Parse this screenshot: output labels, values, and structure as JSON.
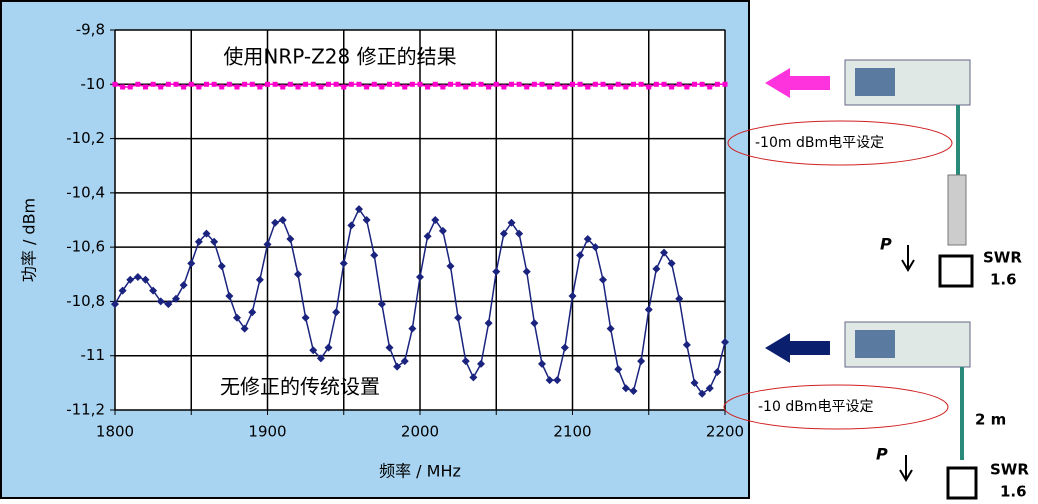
{
  "chart_data": {
    "type": "line",
    "annotations": [
      "使用NRP-Z28 修正的结果",
      "无修正的传统设置"
    ],
    "xlabel": "频率 / MHz",
    "ylabel": "功率 / dBm",
    "x": [
      1800,
      1805,
      1810,
      1815,
      1820,
      1825,
      1830,
      1835,
      1840,
      1845,
      1850,
      1855,
      1860,
      1865,
      1870,
      1875,
      1880,
      1885,
      1890,
      1895,
      1900,
      1905,
      1910,
      1915,
      1920,
      1925,
      1930,
      1935,
      1940,
      1945,
      1950,
      1955,
      1960,
      1965,
      1970,
      1975,
      1980,
      1985,
      1990,
      1995,
      2000,
      2005,
      2010,
      2015,
      2020,
      2025,
      2030,
      2035,
      2040,
      2045,
      2050,
      2055,
      2060,
      2065,
      2070,
      2075,
      2080,
      2085,
      2090,
      2095,
      2100,
      2105,
      2110,
      2115,
      2120,
      2125,
      2130,
      2135,
      2140,
      2145,
      2150,
      2155,
      2160,
      2165,
      2170,
      2175,
      2180,
      2185,
      2190,
      2195,
      2200
    ],
    "series": [
      {
        "color": "#ff00cc",
        "marker": "square",
        "values": [
          -10.0,
          -10.01,
          -10.01,
          -10.0,
          -10.01,
          -10.0,
          -10.01,
          -10.0,
          -10.0,
          -10.01,
          -10.0,
          -10.01,
          -10.0,
          -10.0,
          -10.01,
          -10.0,
          -10.01,
          -10.0,
          -10.0,
          -10.01,
          -10.0,
          -10.0,
          -10.01,
          -10.0,
          -10.01,
          -10.0,
          -10.0,
          -10.01,
          -10.0,
          -10.0,
          -10.01,
          -10.0,
          -10.0,
          -10.01,
          -10.0,
          -10.01,
          -10.0,
          -10.0,
          -10.01,
          -10.0,
          -10.0,
          -10.01,
          -10.0,
          -10.01,
          -10.0,
          -10.0,
          -10.01,
          -10.0,
          -10.0,
          -10.01,
          -10.0,
          -10.01,
          -10.0,
          -10.0,
          -10.01,
          -10.0,
          -10.0,
          -10.01,
          -10.0,
          -10.01,
          -10.0,
          -10.0,
          -10.01,
          -10.0,
          -10.0,
          -10.01,
          -10.0,
          -10.01,
          -10.0,
          -10.0,
          -10.01,
          -10.0,
          -10.0,
          -10.01,
          -10.0,
          -10.01,
          -10.0,
          -10.0,
          -10.01,
          -10.0,
          -10.0
        ]
      },
      {
        "color": "#1a237e",
        "marker": "diamond",
        "values": [
          -10.81,
          -10.76,
          -10.72,
          -10.71,
          -10.72,
          -10.76,
          -10.8,
          -10.81,
          -10.79,
          -10.74,
          -10.66,
          -10.58,
          -10.55,
          -10.58,
          -10.67,
          -10.78,
          -10.86,
          -10.9,
          -10.84,
          -10.72,
          -10.59,
          -10.51,
          -10.5,
          -10.57,
          -10.7,
          -10.86,
          -10.98,
          -11.01,
          -10.97,
          -10.84,
          -10.66,
          -10.52,
          -10.46,
          -10.5,
          -10.63,
          -10.81,
          -10.97,
          -11.04,
          -11.02,
          -10.9,
          -10.71,
          -10.56,
          -10.5,
          -10.54,
          -10.67,
          -10.86,
          -11.02,
          -11.08,
          -11.03,
          -10.88,
          -10.69,
          -10.55,
          -10.51,
          -10.55,
          -10.69,
          -10.88,
          -11.03,
          -11.09,
          -11.09,
          -10.97,
          -10.78,
          -10.63,
          -10.57,
          -10.6,
          -10.72,
          -10.9,
          -11.05,
          -11.12,
          -11.13,
          -11.02,
          -10.83,
          -10.68,
          -10.62,
          -10.66,
          -10.79,
          -10.96,
          -11.1,
          -11.14,
          -11.12,
          -11.06,
          -10.95
        ]
      }
    ],
    "xlim": [
      1800,
      2200
    ],
    "xticks": [
      1800,
      1900,
      2000,
      2100,
      2200
    ],
    "x_minor_ticks": [
      1850,
      1950,
      2050,
      2150
    ],
    "ylim": [
      -11.2,
      -9.8
    ],
    "yticks": [
      {
        "value": -9.8,
        "label": "-9,8"
      },
      -10,
      {
        "value": -10.2,
        "label": "-10,2"
      },
      {
        "value": -10.4,
        "label": "-10,4"
      },
      {
        "value": -10.6,
        "label": "-10,6"
      },
      {
        "value": -10.8,
        "label": "-10,8"
      },
      -11,
      {
        "value": -11.2,
        "label": "-11,2"
      }
    ],
    "grid": true
  },
  "diagram": {
    "top_setting": "-10m dBm电平设定",
    "bottom_setting": "-10 dBm电平设定",
    "power_label": [
      "P",
      "P"
    ],
    "load_label": [
      "SWR",
      "1.6",
      "SWR",
      "1.6"
    ],
    "cable_length": "2 m"
  }
}
